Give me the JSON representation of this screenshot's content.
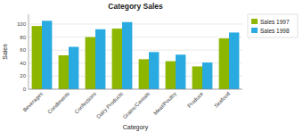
{
  "chart_data": {
    "type": "bar",
    "title": "Category Sales",
    "xlabel": "Category",
    "ylabel": "Sales",
    "categories": [
      "Beverages",
      "Condiments",
      "Confections",
      "Dairy Products",
      "Grains/Cereals",
      "Meat/Poultry",
      "Produce",
      "Seafood"
    ],
    "series": [
      {
        "name": "Sales 1997",
        "color": "#8db600",
        "values": [
          97,
          52,
          80,
          93,
          46,
          43,
          35,
          78
        ]
      },
      {
        "name": "Sales 1998",
        "color": "#29abe2",
        "values": [
          105,
          65,
          92,
          103,
          57,
          53,
          41,
          87
        ]
      }
    ],
    "ylim": [
      0,
      115
    ],
    "yticks": [
      0,
      20,
      40,
      60,
      80,
      100
    ],
    "grid": true,
    "legend": "right"
  }
}
